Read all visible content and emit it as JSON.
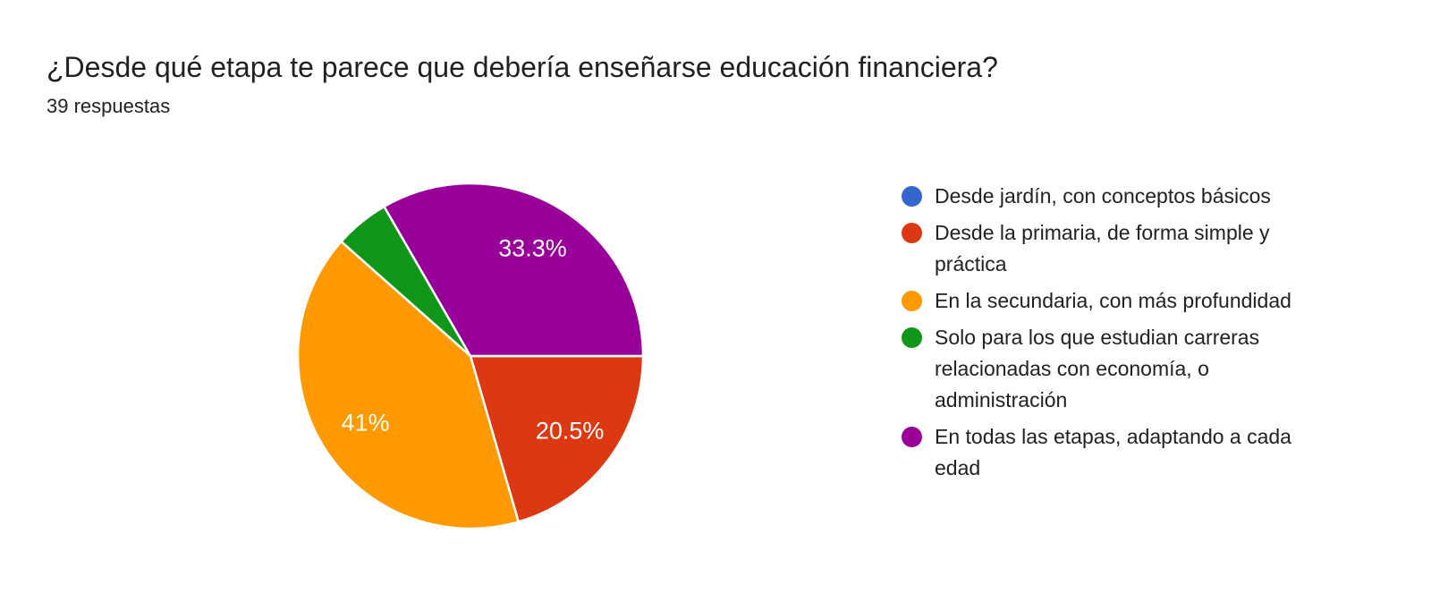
{
  "header": {
    "title": "¿Desde qué etapa te parece que debería enseñarse educación financiera?",
    "responses_count": "39 respuestas"
  },
  "chart_data": {
    "type": "pie",
    "title": "¿Desde qué etapa te parece que debería enseñarse educación financiera?",
    "subtitle": "39 respuestas",
    "total_responses": 39,
    "legend_position": "right",
    "start_angle_deg": 0,
    "start_at": "3-oclock",
    "direction": "clockwise",
    "slice_border_color": "#ffffff",
    "label_color": "#ffffff",
    "slices": [
      {
        "label": "Desde jardín, con conceptos básicos",
        "value": 0,
        "pct": 0,
        "pct_label": "",
        "color": "#3366CC"
      },
      {
        "label": "Desde la primaria, de forma simple y práctica",
        "value": 8,
        "pct": 20.5,
        "pct_label": "20.5%",
        "color": "#DC3912"
      },
      {
        "label": "En la secundaria, con más profundidad",
        "value": 16,
        "pct": 41,
        "pct_label": "41%",
        "color": "#FF9900"
      },
      {
        "label": "Solo para los que estudian carreras relacionadas con economía, o administración",
        "value": 2,
        "pct": 5.1,
        "pct_label": "",
        "color": "#109618"
      },
      {
        "label": "En todas las etapas, adaptando a cada edad",
        "value": 13,
        "pct": 33.3,
        "pct_label": "33.3%",
        "color": "#990099"
      }
    ]
  },
  "colors": {
    "background": "#ffffff",
    "title_text": "#212121",
    "legend_text": "#212121"
  }
}
